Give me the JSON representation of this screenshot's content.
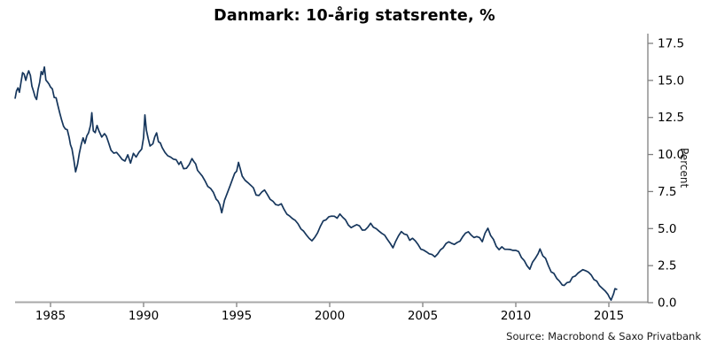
{
  "title": "Danmark: 10-årig statsrente, %",
  "source": "Source: Macrobond & Saxo Privatbank",
  "colors": {
    "line": "#16365c",
    "x_axis_line": "#a8a8a8",
    "y_axis_line": "#7f7f7f",
    "tick": "#7f7f7f",
    "text": "#000000",
    "background": "#ffffff"
  },
  "chart_data": {
    "type": "line",
    "title": "Danmark: 10-årig statsrente, %",
    "xlabel": "",
    "ylabel": "Percent",
    "ylim": [
      0,
      17.5
    ],
    "xlim": [
      1983.1,
      2016.1
    ],
    "grid": false,
    "legend_position": "none",
    "y_ticks": [
      0.0,
      2.5,
      5.0,
      7.5,
      10.0,
      12.5,
      15.0,
      17.5
    ],
    "y_tick_labels": [
      "0.0",
      "2.5",
      "5.0",
      "7.5",
      "10.0",
      "12.5",
      "15.0",
      "17.5"
    ],
    "x_ticks": [
      1985,
      1990,
      1995,
      2000,
      2005,
      2010,
      2015
    ],
    "x_tick_labels": [
      "1985",
      "1990",
      "1995",
      "2000",
      "2005",
      "2010",
      "2015"
    ],
    "series": [
      {
        "name": "Danmark: 10-årig statsrente",
        "color": "#16365c",
        "points": [
          [
            1983.1,
            13.8
          ],
          [
            1983.17,
            14.3
          ],
          [
            1983.25,
            14.7
          ],
          [
            1983.33,
            14.2
          ],
          [
            1983.42,
            14.9
          ],
          [
            1983.5,
            15.3
          ],
          [
            1983.58,
            15.6
          ],
          [
            1983.67,
            15.1
          ],
          [
            1983.75,
            15.4
          ],
          [
            1983.83,
            15.8
          ],
          [
            1983.92,
            15.2
          ],
          [
            1984.0,
            14.6
          ],
          [
            1984.08,
            14.2
          ],
          [
            1984.17,
            13.9
          ],
          [
            1984.25,
            13.8
          ],
          [
            1984.33,
            14.4
          ],
          [
            1984.42,
            15.1
          ],
          [
            1984.5,
            15.6
          ],
          [
            1984.58,
            15.3
          ],
          [
            1984.67,
            15.7
          ],
          [
            1984.75,
            15.1
          ],
          [
            1984.83,
            14.8
          ],
          [
            1984.92,
            15.0
          ],
          [
            1985.0,
            14.5
          ],
          [
            1985.1,
            14.2
          ],
          [
            1985.2,
            13.9
          ],
          [
            1985.3,
            13.6
          ],
          [
            1985.4,
            13.2
          ],
          [
            1985.5,
            12.7
          ],
          [
            1985.6,
            12.3
          ],
          [
            1985.7,
            12.0
          ],
          [
            1985.8,
            11.7
          ],
          [
            1985.9,
            11.5
          ],
          [
            1986.0,
            11.3
          ],
          [
            1986.07,
            10.8
          ],
          [
            1986.15,
            10.4
          ],
          [
            1986.25,
            9.6
          ],
          [
            1986.35,
            8.8
          ],
          [
            1986.45,
            9.5
          ],
          [
            1986.55,
            10.1
          ],
          [
            1986.65,
            10.6
          ],
          [
            1986.75,
            11.0
          ],
          [
            1986.85,
            10.7
          ],
          [
            1986.95,
            11.2
          ],
          [
            1987.05,
            11.6
          ],
          [
            1987.15,
            11.9
          ],
          [
            1987.22,
            12.9
          ],
          [
            1987.3,
            11.8
          ],
          [
            1987.4,
            11.5
          ],
          [
            1987.5,
            11.9
          ],
          [
            1987.6,
            11.7
          ],
          [
            1987.75,
            11.3
          ],
          [
            1987.9,
            11.5
          ],
          [
            1988.0,
            11.2
          ],
          [
            1988.1,
            10.9
          ],
          [
            1988.25,
            10.4
          ],
          [
            1988.4,
            10.1
          ],
          [
            1988.55,
            10.2
          ],
          [
            1988.7,
            9.9
          ],
          [
            1988.85,
            9.6
          ],
          [
            1989.0,
            9.4
          ],
          [
            1989.15,
            9.8
          ],
          [
            1989.3,
            9.5
          ],
          [
            1989.45,
            9.9
          ],
          [
            1989.6,
            10.0
          ],
          [
            1989.75,
            10.2
          ],
          [
            1989.9,
            10.4
          ],
          [
            1990.0,
            11.2
          ],
          [
            1990.07,
            12.5
          ],
          [
            1990.15,
            11.6
          ],
          [
            1990.25,
            11.0
          ],
          [
            1990.35,
            10.7
          ],
          [
            1990.5,
            10.8
          ],
          [
            1990.6,
            11.1
          ],
          [
            1990.7,
            11.3
          ],
          [
            1990.8,
            11.0
          ],
          [
            1990.9,
            10.8
          ],
          [
            1991.0,
            10.5
          ],
          [
            1991.15,
            10.3
          ],
          [
            1991.3,
            10.0
          ],
          [
            1991.45,
            9.8
          ],
          [
            1991.6,
            9.6
          ],
          [
            1991.75,
            9.5
          ],
          [
            1991.9,
            9.3
          ],
          [
            1992.0,
            9.4
          ],
          [
            1992.15,
            9.1
          ],
          [
            1992.3,
            8.9
          ],
          [
            1992.45,
            9.2
          ],
          [
            1992.6,
            9.9
          ],
          [
            1992.7,
            9.4
          ],
          [
            1992.8,
            9.2
          ],
          [
            1992.9,
            9.0
          ],
          [
            1993.0,
            8.9
          ],
          [
            1993.15,
            8.6
          ],
          [
            1993.3,
            8.2
          ],
          [
            1993.45,
            7.9
          ],
          [
            1993.6,
            7.8
          ],
          [
            1993.75,
            7.5
          ],
          [
            1993.9,
            7.1
          ],
          [
            1994.0,
            6.8
          ],
          [
            1994.1,
            6.5
          ],
          [
            1994.2,
            6.2
          ],
          [
            1994.35,
            6.9
          ],
          [
            1994.5,
            7.5
          ],
          [
            1994.65,
            8.0
          ],
          [
            1994.8,
            8.4
          ],
          [
            1994.9,
            8.8
          ],
          [
            1995.0,
            9.0
          ],
          [
            1995.1,
            9.3
          ],
          [
            1995.2,
            8.9
          ],
          [
            1995.3,
            8.7
          ],
          [
            1995.45,
            8.4
          ],
          [
            1995.6,
            8.1
          ],
          [
            1995.75,
            7.9
          ],
          [
            1995.9,
            7.7
          ],
          [
            1996.05,
            7.4
          ],
          [
            1996.2,
            7.2
          ],
          [
            1996.35,
            7.4
          ],
          [
            1996.5,
            7.7
          ],
          [
            1996.65,
            7.3
          ],
          [
            1996.8,
            7.0
          ],
          [
            1996.95,
            6.8
          ],
          [
            1997.1,
            6.7
          ],
          [
            1997.25,
            6.6
          ],
          [
            1997.4,
            6.8
          ],
          [
            1997.55,
            6.4
          ],
          [
            1997.7,
            6.1
          ],
          [
            1997.85,
            5.9
          ],
          [
            1998.0,
            5.6
          ],
          [
            1998.15,
            5.5
          ],
          [
            1998.3,
            5.3
          ],
          [
            1998.45,
            5.1
          ],
          [
            1998.6,
            4.8
          ],
          [
            1998.75,
            4.6
          ],
          [
            1998.9,
            4.4
          ],
          [
            1999.05,
            4.2
          ],
          [
            1999.2,
            4.4
          ],
          [
            1999.35,
            4.7
          ],
          [
            1999.5,
            5.1
          ],
          [
            1999.65,
            5.4
          ],
          [
            1999.8,
            5.7
          ],
          [
            1999.95,
            5.9
          ],
          [
            2000.1,
            5.8
          ],
          [
            2000.25,
            5.9
          ],
          [
            2000.4,
            5.8
          ],
          [
            2000.55,
            5.9
          ],
          [
            2000.7,
            5.7
          ],
          [
            2000.85,
            5.6
          ],
          [
            2001.0,
            5.2
          ],
          [
            2001.15,
            5.0
          ],
          [
            2001.3,
            5.2
          ],
          [
            2001.45,
            5.3
          ],
          [
            2001.6,
            5.1
          ],
          [
            2001.75,
            5.0
          ],
          [
            2001.9,
            4.9
          ],
          [
            2002.05,
            5.2
          ],
          [
            2002.2,
            5.4
          ],
          [
            2002.35,
            5.2
          ],
          [
            2002.5,
            5.0
          ],
          [
            2002.65,
            4.8
          ],
          [
            2002.8,
            4.7
          ],
          [
            2002.95,
            4.5
          ],
          [
            2003.1,
            4.2
          ],
          [
            2003.25,
            4.0
          ],
          [
            2003.4,
            3.8
          ],
          [
            2003.55,
            4.2
          ],
          [
            2003.7,
            4.5
          ],
          [
            2003.85,
            4.7
          ],
          [
            2004.0,
            4.6
          ],
          [
            2004.15,
            4.5
          ],
          [
            2004.3,
            4.3
          ],
          [
            2004.45,
            4.4
          ],
          [
            2004.6,
            4.2
          ],
          [
            2004.75,
            3.9
          ],
          [
            2004.9,
            3.7
          ],
          [
            2005.05,
            3.6
          ],
          [
            2005.2,
            3.5
          ],
          [
            2005.35,
            3.3
          ],
          [
            2005.5,
            3.2
          ],
          [
            2005.65,
            3.1
          ],
          [
            2005.8,
            3.3
          ],
          [
            2005.95,
            3.6
          ],
          [
            2006.1,
            3.8
          ],
          [
            2006.25,
            4.0
          ],
          [
            2006.4,
            4.2
          ],
          [
            2006.55,
            4.1
          ],
          [
            2006.7,
            4.0
          ],
          [
            2006.85,
            4.1
          ],
          [
            2007.0,
            4.2
          ],
          [
            2007.15,
            4.4
          ],
          [
            2007.3,
            4.6
          ],
          [
            2007.45,
            4.8
          ],
          [
            2007.6,
            4.6
          ],
          [
            2007.75,
            4.5
          ],
          [
            2007.9,
            4.5
          ],
          [
            2008.05,
            4.3
          ],
          [
            2008.2,
            4.2
          ],
          [
            2008.35,
            4.6
          ],
          [
            2008.5,
            5.0
          ],
          [
            2008.65,
            4.6
          ],
          [
            2008.8,
            4.2
          ],
          [
            2008.95,
            3.7
          ],
          [
            2009.1,
            3.5
          ],
          [
            2009.25,
            3.8
          ],
          [
            2009.4,
            3.7
          ],
          [
            2009.55,
            3.7
          ],
          [
            2009.7,
            3.6
          ],
          [
            2009.85,
            3.6
          ],
          [
            2010.0,
            3.5
          ],
          [
            2010.15,
            3.4
          ],
          [
            2010.3,
            3.1
          ],
          [
            2010.45,
            2.8
          ],
          [
            2010.6,
            2.5
          ],
          [
            2010.75,
            2.3
          ],
          [
            2010.9,
            2.7
          ],
          [
            2011.05,
            3.0
          ],
          [
            2011.2,
            3.4
          ],
          [
            2011.3,
            3.6
          ],
          [
            2011.45,
            3.2
          ],
          [
            2011.6,
            3.0
          ],
          [
            2011.75,
            2.5
          ],
          [
            2011.9,
            2.1
          ],
          [
            2012.05,
            1.9
          ],
          [
            2012.2,
            1.7
          ],
          [
            2012.35,
            1.5
          ],
          [
            2012.5,
            1.2
          ],
          [
            2012.6,
            1.1
          ],
          [
            2012.75,
            1.3
          ],
          [
            2012.9,
            1.4
          ],
          [
            2013.05,
            1.7
          ],
          [
            2013.2,
            1.8
          ],
          [
            2013.35,
            2.0
          ],
          [
            2013.5,
            2.2
          ],
          [
            2013.6,
            2.3
          ],
          [
            2013.75,
            2.1
          ],
          [
            2013.9,
            2.0
          ],
          [
            2014.05,
            1.9
          ],
          [
            2014.2,
            1.6
          ],
          [
            2014.35,
            1.4
          ],
          [
            2014.5,
            1.2
          ],
          [
            2014.65,
            1.0
          ],
          [
            2014.8,
            0.8
          ],
          [
            2014.95,
            0.5
          ],
          [
            2015.05,
            0.3
          ],
          [
            2015.12,
            0.2
          ],
          [
            2015.25,
            0.6
          ],
          [
            2015.33,
            1.0
          ],
          [
            2015.42,
            0.9
          ]
        ]
      }
    ]
  }
}
